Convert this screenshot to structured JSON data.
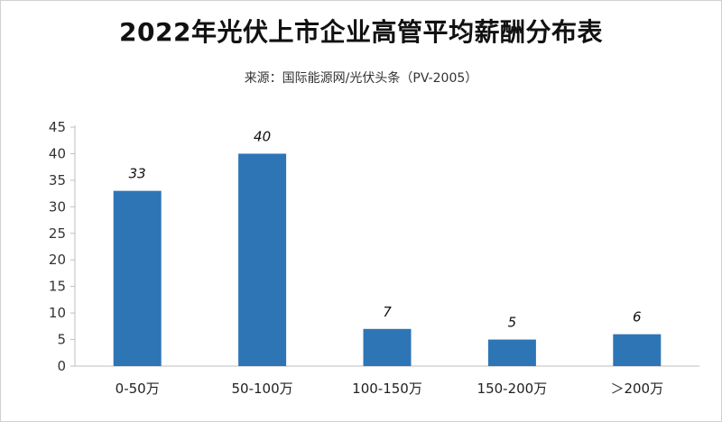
{
  "chart_data": {
    "type": "bar",
    "title": "2022年光伏上市企业高管平均薪酬分布表",
    "subtitle": "来源：国际能源网/光伏头条（PV-2005）",
    "categories": [
      "0-50万",
      "50-100万",
      "100-150万",
      "150-200万",
      "＞200万"
    ],
    "values": [
      33,
      40,
      7,
      5,
      6
    ],
    "data_labels": [
      "33",
      "40",
      "7",
      "5",
      "6"
    ],
    "xlabel": "",
    "ylabel": "",
    "ylim": [
      0,
      45
    ],
    "yticks": [
      0,
      5,
      10,
      15,
      20,
      25,
      30,
      35,
      40,
      45
    ],
    "grid": false,
    "legend": "none",
    "bar_color": "#2E75B6"
  }
}
